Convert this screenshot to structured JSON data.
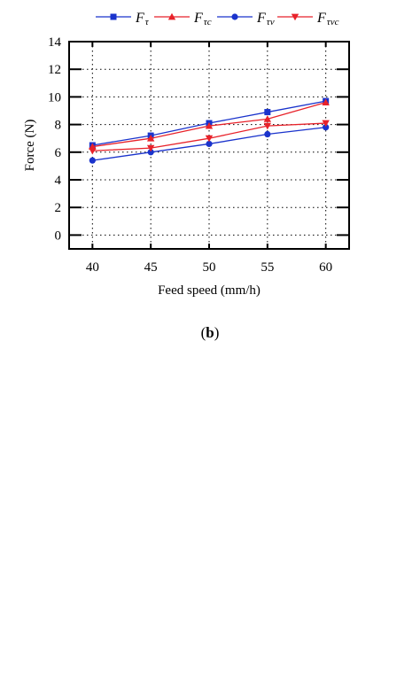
{
  "chart_data": {
    "type": "line",
    "title": "",
    "xlabel": "Feed speed (mm/h)",
    "ylabel": "Force (N)",
    "x": [
      40,
      45,
      50,
      55,
      60
    ],
    "xticks": [
      "40",
      "45",
      "50",
      "55",
      "60"
    ],
    "yticks": [
      "0",
      "2",
      "4",
      "6",
      "8",
      "10",
      "12",
      "14"
    ],
    "xlim": [
      38,
      62
    ],
    "ylim": [
      -1,
      14
    ],
    "grid": true,
    "legend_position": "top",
    "series": [
      {
        "name": "F",
        "sub": "τ",
        "color": "#1a33cc",
        "marker": "square",
        "values": [
          6.5,
          7.2,
          8.1,
          8.9,
          9.7
        ]
      },
      {
        "name": "F",
        "sub": "τc",
        "color": "#e8222a",
        "marker": "triangle-up",
        "values": [
          6.4,
          7.0,
          7.9,
          8.4,
          9.6
        ]
      },
      {
        "name": "F",
        "sub": "τv",
        "color": "#1a33cc",
        "marker": "circle",
        "values": [
          5.4,
          6.0,
          6.6,
          7.3,
          7.8
        ]
      },
      {
        "name": "F",
        "sub": "τvc",
        "color": "#e8222a",
        "marker": "triangle-down",
        "values": [
          6.1,
          6.3,
          7.0,
          7.9,
          8.1
        ]
      }
    ]
  },
  "panel_label": "b"
}
